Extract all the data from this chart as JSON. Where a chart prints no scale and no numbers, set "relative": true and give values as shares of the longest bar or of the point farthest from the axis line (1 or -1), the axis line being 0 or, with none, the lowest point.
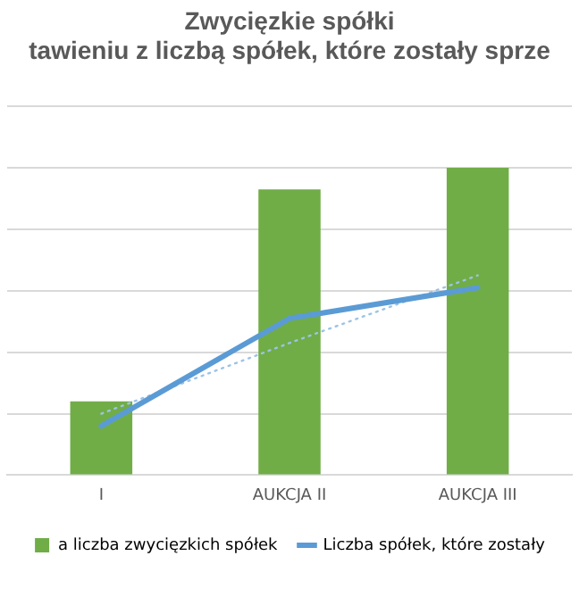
{
  "chart_data": {
    "type": "bar",
    "title": [
      "Zwycięzkie spółki",
      "tawieniu z liczbą spółek, które zostały sprze"
    ],
    "categories": [
      "I",
      "AUKCJA II",
      "AUKCJA III"
    ],
    "relative": true,
    "grid": "y",
    "legend": "bottom",
    "series": [
      {
        "name": "a liczba zwycięzkich spółek",
        "color": "#70ad47",
        "values": [
          0.24,
          0.93,
          1
        ]
      },
      {
        "name": "Liczba spółek, które zostały",
        "type": "line",
        "color": "#5b9bd5",
        "values": [
          0.16,
          0.51,
          0.61
        ],
        "marker": "none",
        "line_style": "solid"
      },
      {
        "type": "line",
        "color": "#9dc3e6",
        "values": [
          0.2,
          0.43,
          0.65
        ],
        "marker": "none",
        "line_style": "dotted"
      }
    ]
  }
}
